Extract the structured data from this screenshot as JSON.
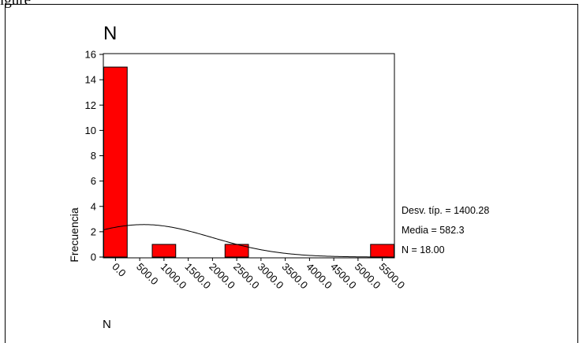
{
  "top_fragment": "igure",
  "chart_data": {
    "type": "bar",
    "title": "N",
    "xlabel": "N",
    "ylabel": "Frecuencia",
    "bin_centers": [
      0,
      500,
      1000,
      1500,
      2000,
      2500,
      3000,
      3500,
      4000,
      4500,
      5000,
      5500
    ],
    "x_tick_labels": [
      "0.0",
      "500.0",
      "1000.0",
      "1500.0",
      "2000.0",
      "2500.0",
      "3000.0",
      "3500.0",
      "4000.0",
      "4500.0",
      "5000.0",
      "5500.0"
    ],
    "bars": [
      {
        "x": 0,
        "value": 15
      },
      {
        "x": 1000,
        "value": 1
      },
      {
        "x": 2500,
        "value": 1
      },
      {
        "x": 5500,
        "value": 1
      }
    ],
    "ylim": [
      0,
      16
    ],
    "y_ticks": [
      0,
      2,
      4,
      6,
      8,
      10,
      12,
      14,
      16
    ],
    "normal_curve": {
      "mean": 582.3,
      "std": 1400.28,
      "n": 18
    },
    "bar_color": "#ff0000",
    "stats": {
      "std_label": "Desv. típ. = 1400.28",
      "mean_label": "Media = 582.3",
      "n_label": "N = 18.00"
    }
  }
}
